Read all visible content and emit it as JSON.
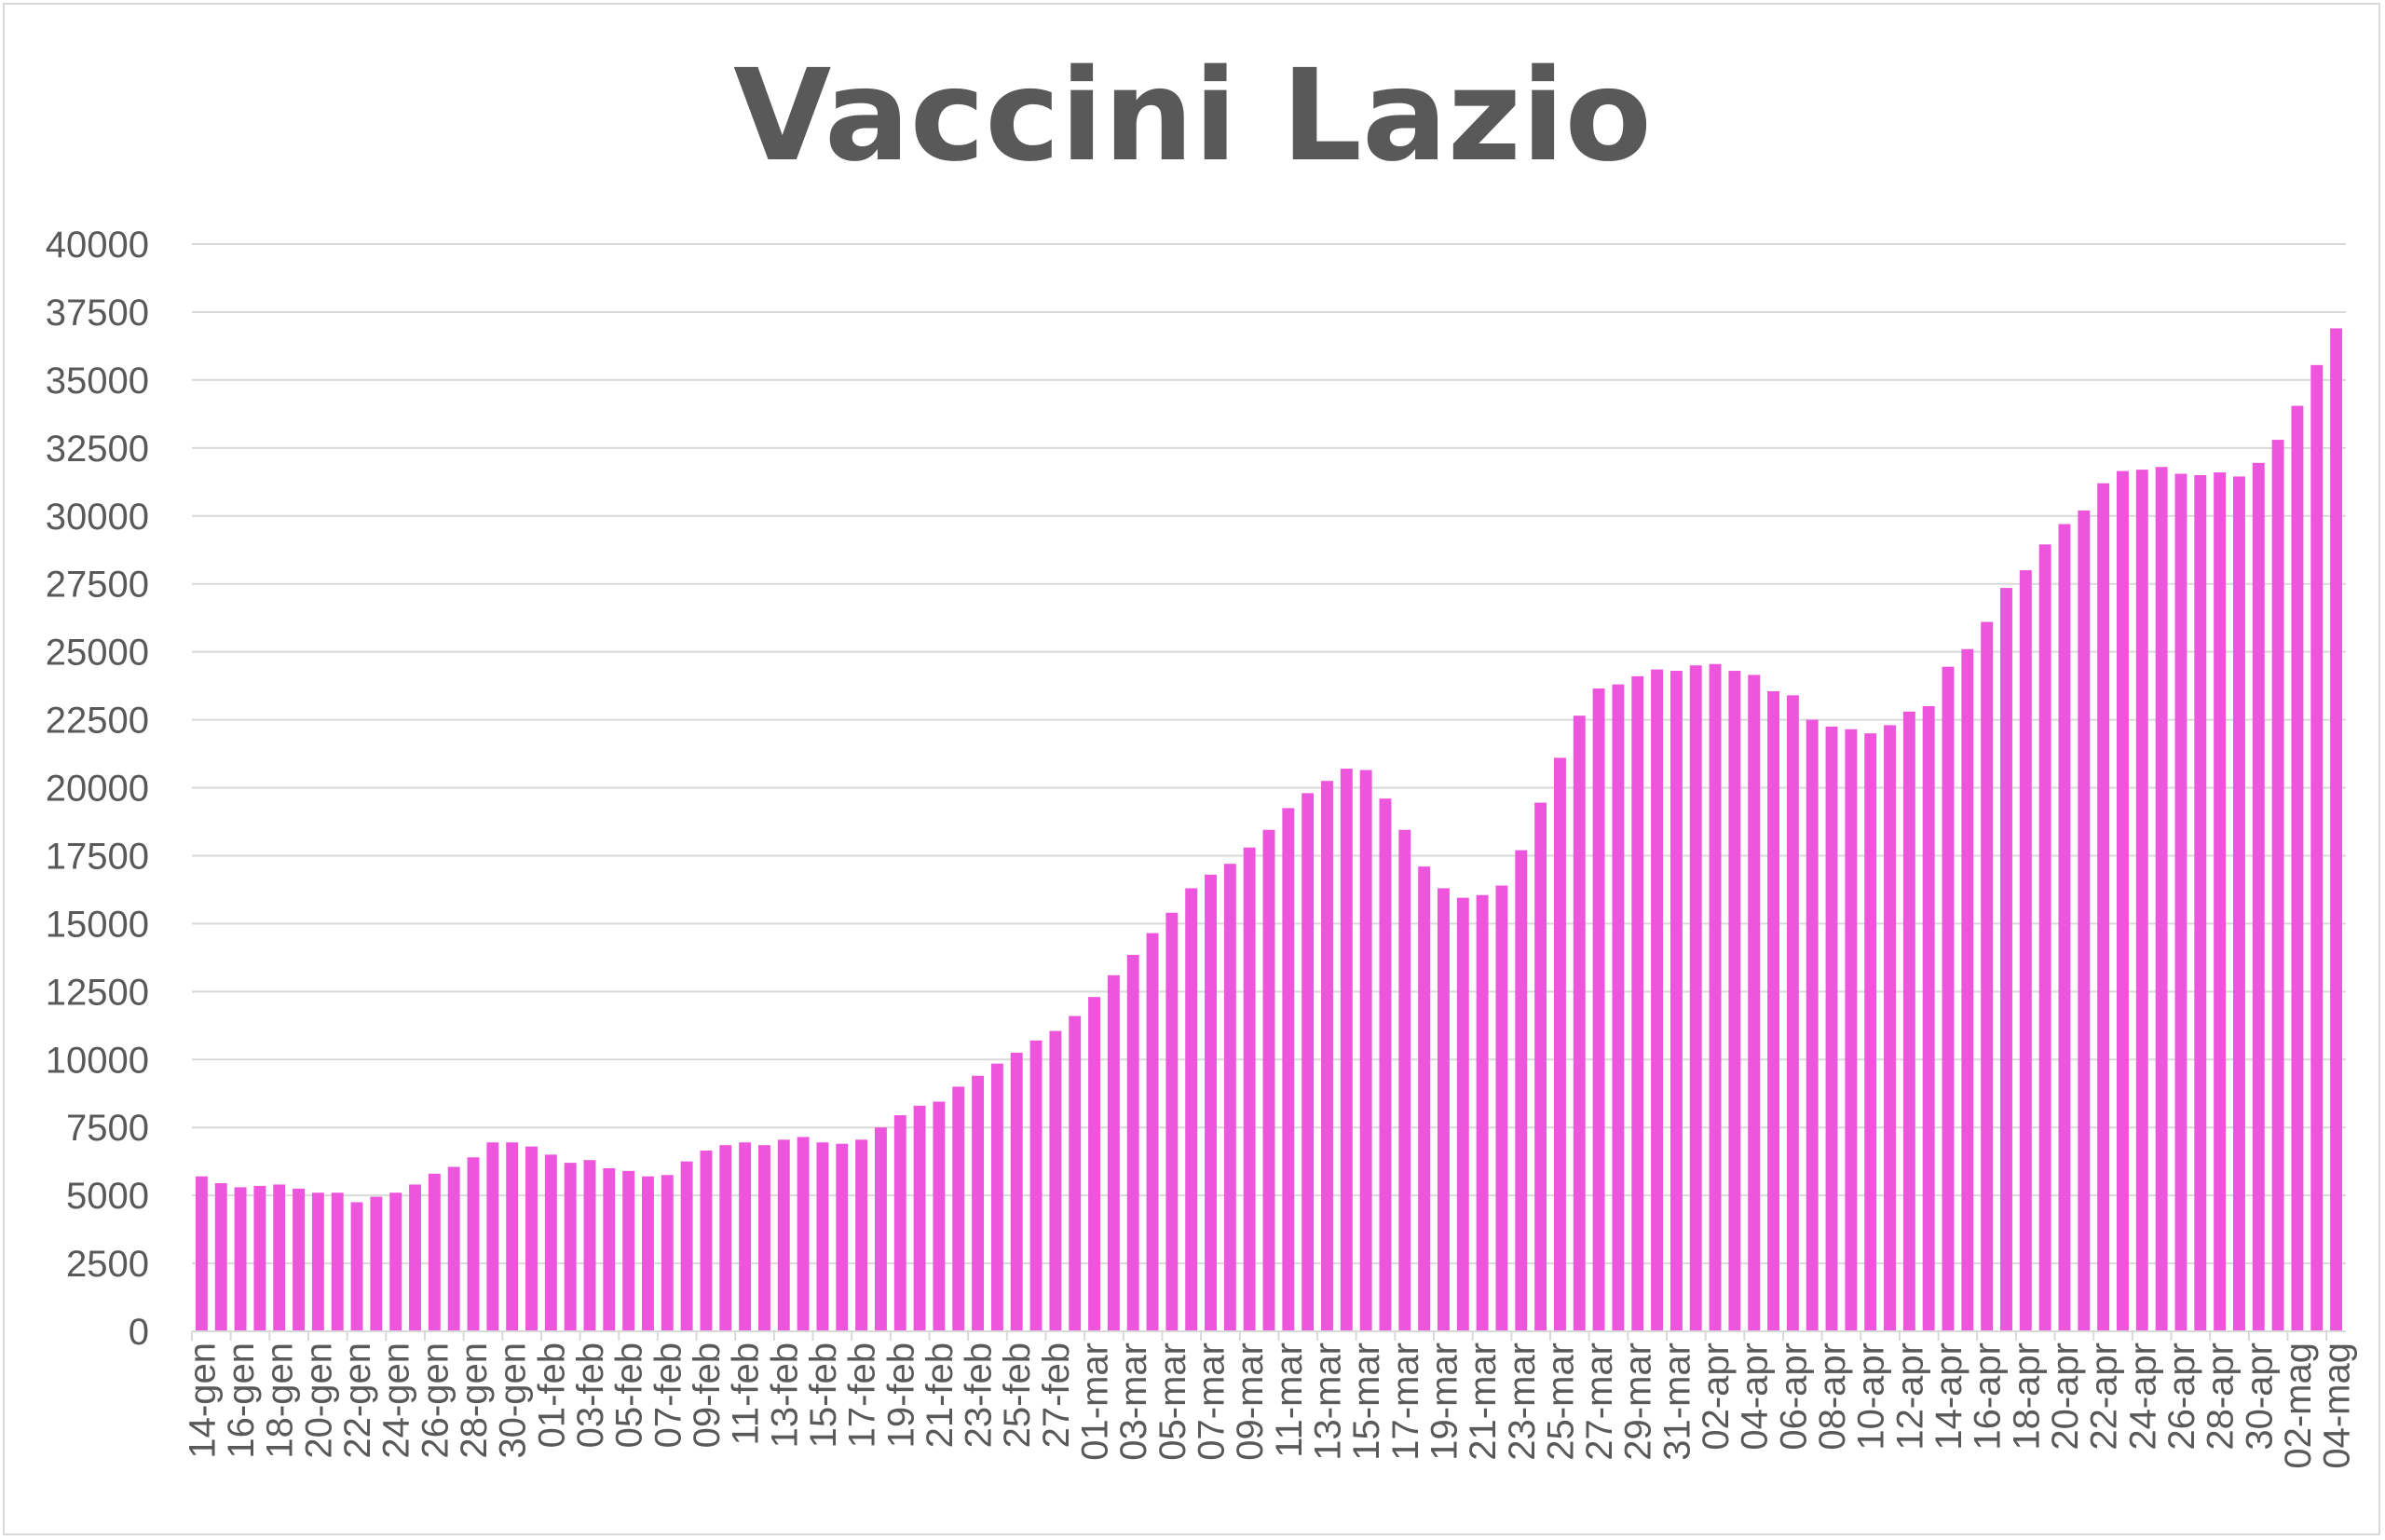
{
  "chart_data": {
    "type": "bar",
    "title": "Vaccini Lazio",
    "xlabel": "",
    "ylabel": "",
    "ylim": [
      0,
      40000
    ],
    "yticks": [
      0,
      2500,
      5000,
      7500,
      10000,
      12500,
      15000,
      17500,
      20000,
      22500,
      25000,
      27500,
      30000,
      32500,
      35000,
      37500,
      40000
    ],
    "grid": true,
    "legend": "none",
    "bar_color": "#ee55dd",
    "categories": [
      "14-gen",
      "15-gen",
      "16-gen",
      "17-gen",
      "18-gen",
      "19-gen",
      "20-gen",
      "21-gen",
      "22-gen",
      "23-gen",
      "24-gen",
      "25-gen",
      "26-gen",
      "27-gen",
      "28-gen",
      "29-gen",
      "30-gen",
      "31-gen",
      "01-feb",
      "02-feb",
      "03-feb",
      "04-feb",
      "05-feb",
      "06-feb",
      "07-feb",
      "08-feb",
      "09-feb",
      "10-feb",
      "11-feb",
      "12-feb",
      "13-feb",
      "14-feb",
      "15-feb",
      "16-feb",
      "17-feb",
      "18-feb",
      "19-feb",
      "20-feb",
      "21-feb",
      "22-feb",
      "23-feb",
      "24-feb",
      "25-feb",
      "26-feb",
      "27-feb",
      "28-feb",
      "01-mar",
      "02-mar",
      "03-mar",
      "04-mar",
      "05-mar",
      "06-mar",
      "07-mar",
      "08-mar",
      "09-mar",
      "10-mar",
      "11-mar",
      "12-mar",
      "13-mar",
      "14-mar",
      "15-mar",
      "16-mar",
      "17-mar",
      "18-mar",
      "19-mar",
      "20-mar",
      "21-mar",
      "22-mar",
      "23-mar",
      "24-mar",
      "25-mar",
      "26-mar",
      "27-mar",
      "28-mar",
      "29-mar",
      "30-mar",
      "31-mar",
      "01-apr",
      "02-apr",
      "03-apr",
      "04-apr",
      "05-apr",
      "06-apr",
      "07-apr",
      "08-apr",
      "09-apr",
      "10-apr",
      "11-apr",
      "12-apr",
      "13-apr",
      "14-apr",
      "15-apr",
      "16-apr",
      "17-apr",
      "18-apr",
      "19-apr",
      "20-apr",
      "21-apr",
      "22-apr",
      "23-apr",
      "24-apr",
      "25-apr",
      "26-apr",
      "27-apr",
      "28-apr",
      "29-apr",
      "30-apr",
      "01-mag",
      "02-mag",
      "03-mag",
      "04-mag"
    ],
    "tick_labels": [
      "14-gen",
      "16-gen",
      "18-gen",
      "20-gen",
      "22-gen",
      "24-gen",
      "26-gen",
      "28-gen",
      "30-gen",
      "01-feb",
      "03-feb",
      "05-feb",
      "07-feb",
      "09-feb",
      "11-feb",
      "13-feb",
      "15-feb",
      "17-feb",
      "19-feb",
      "21-feb",
      "23-feb",
      "25-feb",
      "27-feb",
      "01-mar",
      "03-mar",
      "05-mar",
      "07-mar",
      "09-mar",
      "11-mar",
      "13-mar",
      "15-mar",
      "17-mar",
      "19-mar",
      "21-mar",
      "23-mar",
      "25-mar",
      "27-mar",
      "29-mar",
      "31-mar",
      "02-apr",
      "04-apr",
      "06-apr",
      "08-apr",
      "10-apr",
      "12-apr",
      "14-apr",
      "16-apr",
      "18-apr",
      "20-apr",
      "22-apr",
      "24-apr",
      "26-apr",
      "28-apr",
      "30-apr",
      "02-mag",
      "04-mag"
    ],
    "values": [
      5700,
      5450,
      5300,
      5350,
      5400,
      5250,
      5100,
      5100,
      4750,
      4950,
      5100,
      5400,
      5800,
      6050,
      6400,
      6950,
      6950,
      6800,
      6500,
      6200,
      6300,
      6000,
      5900,
      5700,
      5750,
      6250,
      6650,
      6850,
      6950,
      6850,
      7050,
      7150,
      6950,
      6900,
      7050,
      7500,
      7950,
      8300,
      8450,
      9000,
      9400,
      9850,
      10250,
      10700,
      11050,
      11600,
      12300,
      13100,
      13850,
      14650,
      15400,
      16300,
      16800,
      17200,
      17800,
      18450,
      19250,
      19800,
      20250,
      20700,
      20650,
      19600,
      18450,
      17100,
      16300,
      15950,
      16050,
      16400,
      17700,
      19450,
      21100,
      22650,
      23650,
      23800,
      24100,
      24350,
      24300,
      24500,
      24550,
      24300,
      24150,
      23550,
      23400,
      22500,
      22250,
      22150,
      22000,
      22300,
      22800,
      23000,
      24450,
      25100,
      26100,
      27350,
      28000,
      28950,
      29700,
      30200,
      31200,
      31650,
      31700,
      31800,
      31550,
      31500,
      31600,
      31450,
      31950,
      32800,
      34050,
      35550,
      36900
    ]
  }
}
